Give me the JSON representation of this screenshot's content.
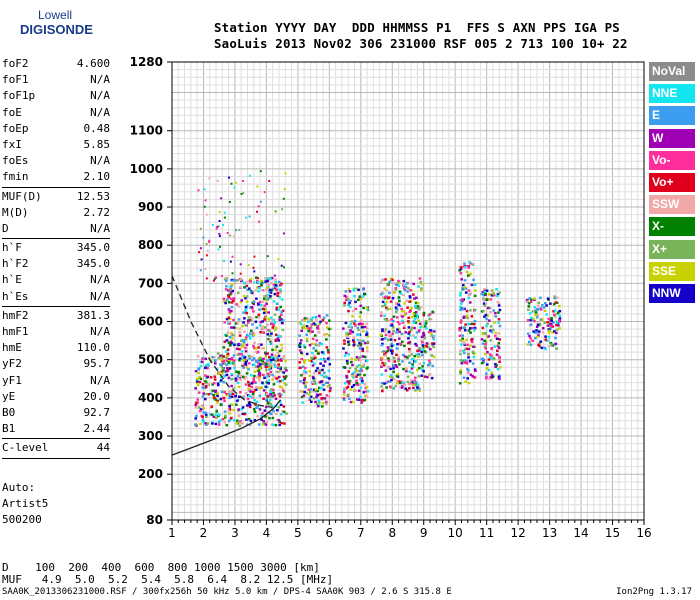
{
  "logo": {
    "line1": "Lowell",
    "line2": "DIGISONDE"
  },
  "header": {
    "row1": "Station YYYY DAY  DDD HHMMSS P1  FFS S AXN PPS IGA PS",
    "row2": "SaoLuis 2013 Nov02 306 231000 RSF 005 2 713 100 10+ 22"
  },
  "params": [
    [
      [
        "foF2",
        "4.600"
      ],
      [
        "foF1",
        "N/A"
      ],
      [
        "foF1p",
        "N/A"
      ],
      [
        "foE",
        "N/A"
      ],
      [
        "foEp",
        "0.48"
      ],
      [
        "fxI",
        "5.85"
      ],
      [
        "foEs",
        "N/A"
      ],
      [
        "fmin",
        "2.10"
      ]
    ],
    [
      [
        "MUF(D)",
        "12.53"
      ],
      [
        "M(D)",
        "2.72"
      ],
      [
        "D",
        "N/A"
      ]
    ],
    [
      [
        "h`F",
        "345.0"
      ],
      [
        "h`F2",
        "345.0"
      ],
      [
        "h`E",
        "N/A"
      ],
      [
        "h`Es",
        "N/A"
      ]
    ],
    [
      [
        "hmF2",
        "381.3"
      ],
      [
        "hmF1",
        "N/A"
      ],
      [
        "hmE",
        "110.0"
      ],
      [
        "yF2",
        "95.7"
      ],
      [
        "yF1",
        "N/A"
      ],
      [
        "yE",
        "20.0"
      ],
      [
        "B0",
        "92.7"
      ],
      [
        "B1",
        "2.44"
      ]
    ],
    [
      [
        "C-level",
        "44"
      ]
    ]
  ],
  "auto": [
    "Auto:",
    "Artist5",
    "500200"
  ],
  "legend": [
    {
      "label": "NoVal",
      "color": "#8c8c8c"
    },
    {
      "label": "NNE",
      "color": "#14e6f0"
    },
    {
      "label": "E",
      "color": "#3c9cf0"
    },
    {
      "label": "W",
      "color": "#a000b4"
    },
    {
      "label": "Vo-",
      "color": "#ff2e9c"
    },
    {
      "label": "Vo+",
      "color": "#e0001e"
    },
    {
      "label": "SSW",
      "color": "#f0a8a8"
    },
    {
      "label": "X-",
      "color": "#008000"
    },
    {
      "label": "X+",
      "color": "#7ab45a"
    },
    {
      "label": "SSE",
      "color": "#c8d200"
    },
    {
      "label": "NNW",
      "color": "#1400c8"
    }
  ],
  "footer": {
    "drow": "D    100  200  400  600  800 1000 1500 3000 [km]",
    "mufrow": "MUF   4.9  5.0  5.2  5.4  5.8  6.4  8.2 12.5 [MHz]",
    "bottom": "SAA0K_2013306231000.RSF / 300fx256h 50 kHz 5.0 km / DPS-4 SAA0K 903 / 2.6 S 315.8 E",
    "version": "Ion2Png 1.3.17"
  },
  "chart_data": {
    "type": "scatter",
    "title": "",
    "xlabel": "",
    "ylabel": "",
    "xlim": [
      1,
      16
    ],
    "ylim": [
      80,
      1280
    ],
    "x_ticks": [
      1,
      2,
      3,
      4,
      5,
      6,
      7,
      8,
      9,
      10,
      11,
      12,
      13,
      14,
      15,
      16
    ],
    "y_ticks": [
      80,
      200,
      300,
      400,
      500,
      600,
      700,
      800,
      900,
      1000,
      1100,
      1280
    ],
    "grid": true,
    "legend_position": "right",
    "clusters": [
      {
        "x": [
          1.7,
          4.6
        ],
        "y": [
          330,
          520
        ]
      },
      {
        "x": [
          2.6,
          4.5
        ],
        "y": [
          480,
          720
        ]
      },
      {
        "x": [
          5.0,
          6.0
        ],
        "y": [
          380,
          620
        ]
      },
      {
        "x": [
          6.4,
          7.2
        ],
        "y": [
          390,
          690
        ]
      },
      {
        "x": [
          7.6,
          8.9
        ],
        "y": [
          420,
          720
        ]
      },
      {
        "x": [
          8.9,
          9.3
        ],
        "y": [
          450,
          640
        ]
      },
      {
        "x": [
          10.1,
          10.6
        ],
        "y": [
          440,
          760
        ]
      },
      {
        "x": [
          10.8,
          11.4
        ],
        "y": [
          450,
          690
        ]
      },
      {
        "x": [
          12.2,
          13.3
        ],
        "y": [
          530,
          670
        ]
      }
    ],
    "curves": [
      {
        "name": "",
        "style": "dashed",
        "points": [
          [
            1.0,
            720
          ],
          [
            1.6,
            600
          ],
          [
            2.2,
            500
          ],
          [
            2.8,
            430
          ],
          [
            3.3,
            395
          ],
          [
            3.8,
            380
          ],
          [
            4.2,
            375
          ]
        ]
      },
      {
        "name": "",
        "style": "solid",
        "points": [
          [
            1.0,
            250
          ],
          [
            1.8,
            275
          ],
          [
            2.6,
            300
          ],
          [
            3.2,
            320
          ],
          [
            3.8,
            345
          ],
          [
            4.2,
            370
          ],
          [
            4.45,
            395
          ]
        ]
      }
    ]
  }
}
